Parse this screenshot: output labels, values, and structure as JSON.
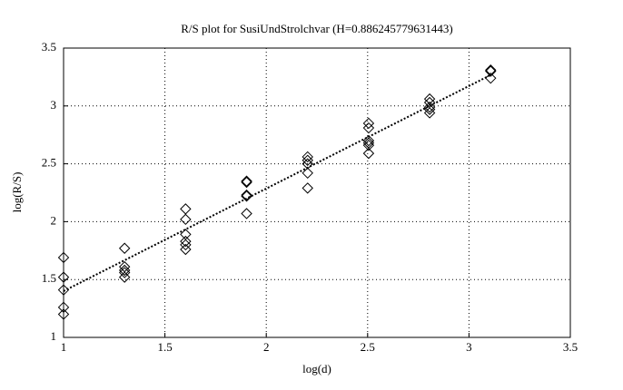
{
  "chart_data": {
    "type": "scatter",
    "title": "R/S plot for SusiUndStrolchvar (H=0.886245779631443)",
    "x_label": "log(d)",
    "y_label": "log(R/S)",
    "xlim": [
      1,
      3.5
    ],
    "ylim": [
      1,
      3.5
    ],
    "xticks": [
      1,
      1.5,
      2,
      2.5,
      3,
      3.5
    ],
    "yticks": [
      1,
      1.5,
      2,
      2.5,
      3,
      3.5
    ],
    "grid": true,
    "color": "#000000",
    "series": [
      {
        "x": [
          1,
          1,
          1,
          1,
          1,
          1.301,
          1.301,
          1.301,
          1.301,
          1.301,
          1.602,
          1.602,
          1.602,
          1.602,
          1.602,
          1.602,
          1.903,
          1.903,
          1.903,
          1.903,
          1.903,
          2.204,
          2.204,
          2.204,
          2.204,
          2.204,
          2.505,
          2.505,
          2.505,
          2.505,
          2.505,
          2.505,
          2.806,
          2.806,
          2.806,
          2.806,
          2.806,
          3.107,
          3.107,
          3.107
        ],
        "y": [
          1.69,
          1.52,
          1.41,
          1.26,
          1.2,
          1.77,
          1.61,
          1.58,
          1.56,
          1.52,
          2.11,
          2.02,
          1.89,
          1.83,
          1.8,
          1.76,
          2.35,
          2.34,
          2.23,
          2.22,
          2.07,
          2.56,
          2.53,
          2.5,
          2.42,
          2.29,
          2.85,
          2.81,
          2.7,
          2.68,
          2.66,
          2.59,
          3.06,
          3.03,
          2.99,
          2.97,
          2.94,
          3.31,
          3.3,
          3.24
        ]
      }
    ],
    "fit": {
      "x": [
        1,
        3.107
      ],
      "y": [
        1.4,
        3.267
      ]
    }
  }
}
